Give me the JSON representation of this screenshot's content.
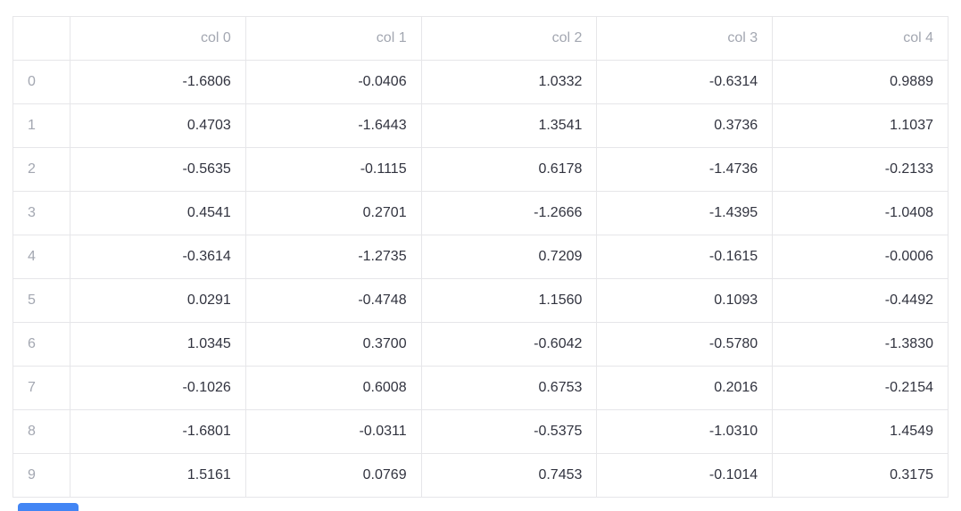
{
  "table": {
    "index_header": "",
    "columns": [
      "col 0",
      "col 1",
      "col 2",
      "col 3",
      "col 4"
    ],
    "rows": [
      {
        "index": "0",
        "values": [
          "-1.6806",
          "-0.0406",
          "1.0332",
          "-0.6314",
          "0.9889"
        ]
      },
      {
        "index": "1",
        "values": [
          "0.4703",
          "-1.6443",
          "1.3541",
          "0.3736",
          "1.1037"
        ]
      },
      {
        "index": "2",
        "values": [
          "-0.5635",
          "-0.1115",
          "0.6178",
          "-1.4736",
          "-0.2133"
        ]
      },
      {
        "index": "3",
        "values": [
          "0.4541",
          "0.2701",
          "-1.2666",
          "-1.4395",
          "-1.0408"
        ]
      },
      {
        "index": "4",
        "values": [
          "-0.3614",
          "-1.2735",
          "0.7209",
          "-0.1615",
          "-0.0006"
        ]
      },
      {
        "index": "5",
        "values": [
          "0.0291",
          "-0.4748",
          "1.1560",
          "0.1093",
          "-0.4492"
        ]
      },
      {
        "index": "6",
        "values": [
          "1.0345",
          "0.3700",
          "-0.6042",
          "-0.5780",
          "-1.3830"
        ]
      },
      {
        "index": "7",
        "values": [
          "-0.1026",
          "0.6008",
          "0.6753",
          "0.2016",
          "-0.2154"
        ]
      },
      {
        "index": "8",
        "values": [
          "-1.6801",
          "-0.0311",
          "-0.5375",
          "-1.0310",
          "1.4549"
        ]
      },
      {
        "index": "9",
        "values": [
          "1.5161",
          "0.0769",
          "0.7453",
          "-0.1014",
          "0.3175"
        ]
      }
    ]
  },
  "colors": {
    "header_text": "#a3a7b1",
    "cell_text": "#31333f",
    "border": "#e6e6e9",
    "background": "#ffffff",
    "clipped_widget_blue": "#4285f4"
  }
}
